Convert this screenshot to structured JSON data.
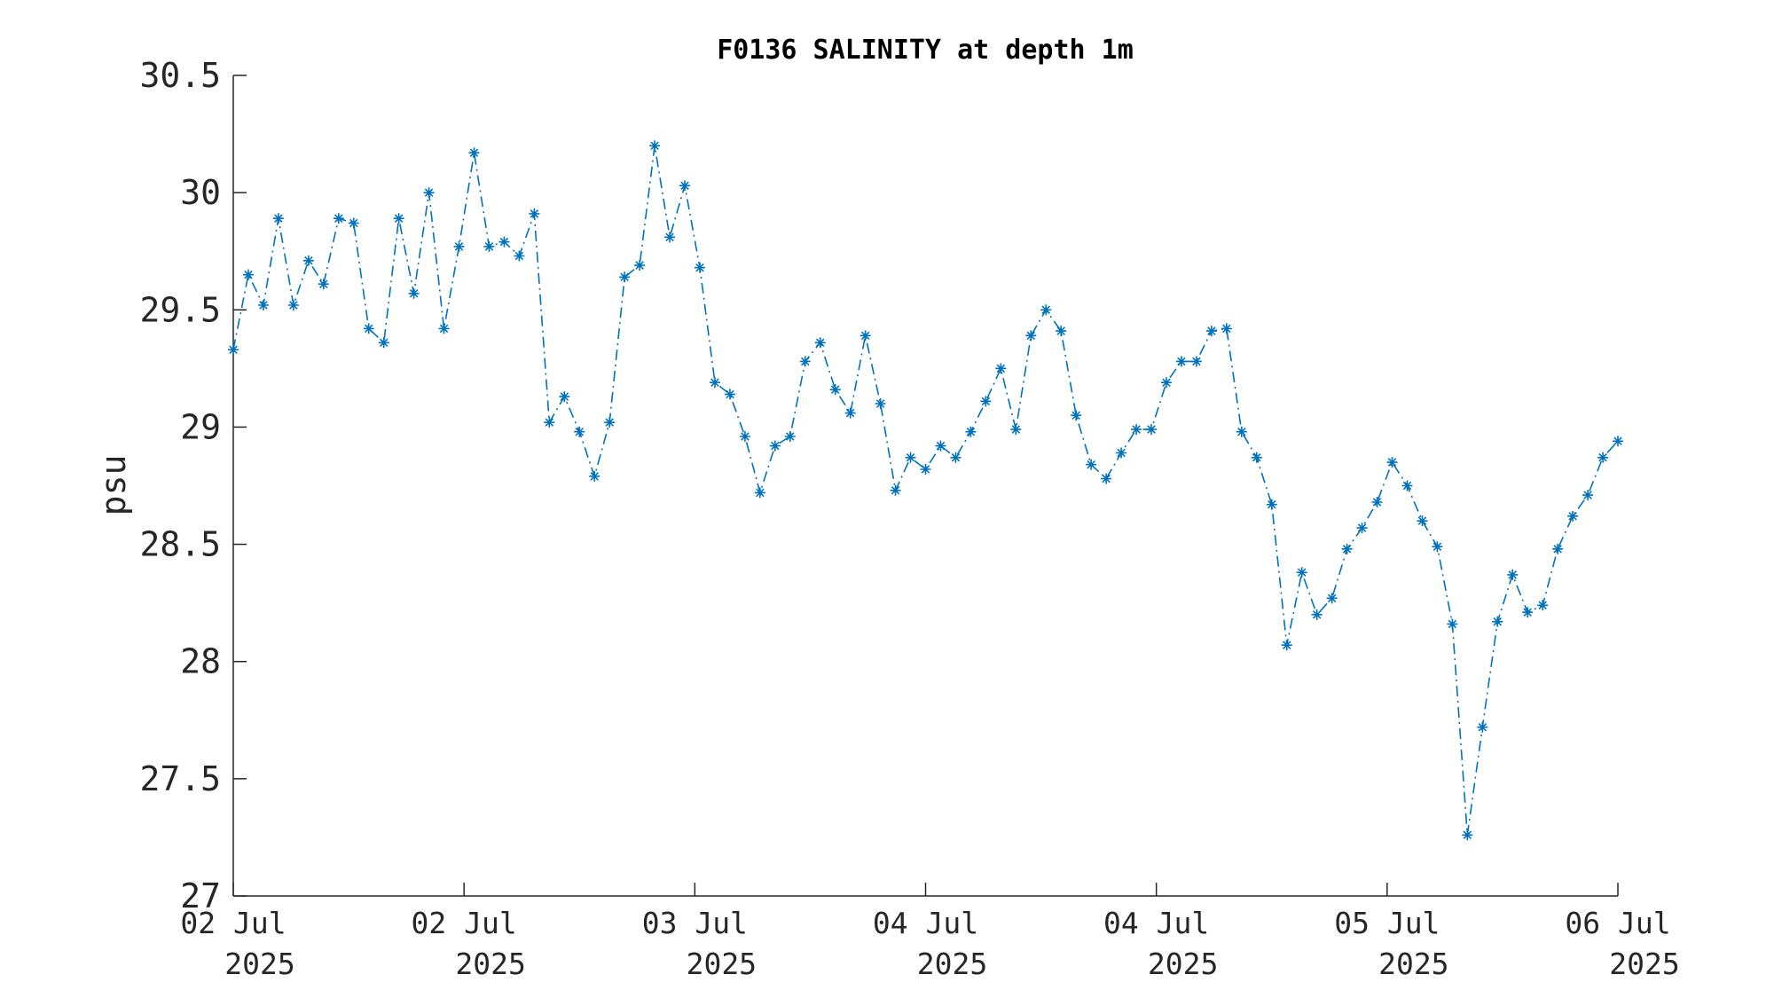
{
  "chart_data": {
    "type": "line",
    "title": "F0136 SALINITY at depth 1m",
    "xlabel": "",
    "ylabel": "psu",
    "ylim": [
      27,
      30.5
    ],
    "yticks": [
      "27",
      "27.5",
      "28",
      "28.5",
      "29",
      "29.5",
      "30",
      "30.5"
    ],
    "xticks": [
      {
        "line1": "02 Jul",
        "line2": "2025"
      },
      {
        "line1": "02 Jul",
        "line2": "2025"
      },
      {
        "line1": "03 Jul",
        "line2": "2025"
      },
      {
        "line1": "04 Jul",
        "line2": "2025"
      },
      {
        "line1": "04 Jul",
        "line2": "2025"
      },
      {
        "line1": "05 Jul",
        "line2": "2025"
      },
      {
        "line1": "06 Jul",
        "line2": "2025"
      }
    ],
    "marker": "asterisk",
    "line_style": "dash-dot",
    "series": [
      {
        "color": "#0072BD",
        "values": [
          29.33,
          29.65,
          29.52,
          29.89,
          29.52,
          29.71,
          29.61,
          29.89,
          29.87,
          29.42,
          29.36,
          29.89,
          29.57,
          30.0,
          29.42,
          29.77,
          30.17,
          29.77,
          29.79,
          29.73,
          29.91,
          29.02,
          29.13,
          28.98,
          28.79,
          29.02,
          29.64,
          29.69,
          30.2,
          29.81,
          30.03,
          29.68,
          29.19,
          29.14,
          28.96,
          28.72,
          28.92,
          28.96,
          29.28,
          29.36,
          29.16,
          29.06,
          29.39,
          29.1,
          28.73,
          28.87,
          28.82,
          28.92,
          28.87,
          28.98,
          29.11,
          29.25,
          28.99,
          29.39,
          29.5,
          29.41,
          29.05,
          28.84,
          28.78,
          28.89,
          28.99,
          28.99,
          29.19,
          29.28,
          29.28,
          29.41,
          29.42,
          28.98,
          28.87,
          28.67,
          28.07,
          28.38,
          28.2,
          28.27,
          28.48,
          28.57,
          28.68,
          28.85,
          28.75,
          28.6,
          28.49,
          28.16,
          27.26,
          27.72,
          28.17,
          28.37,
          28.21,
          28.24,
          28.48,
          28.62,
          28.71,
          28.87,
          28.94
        ]
      }
    ]
  }
}
